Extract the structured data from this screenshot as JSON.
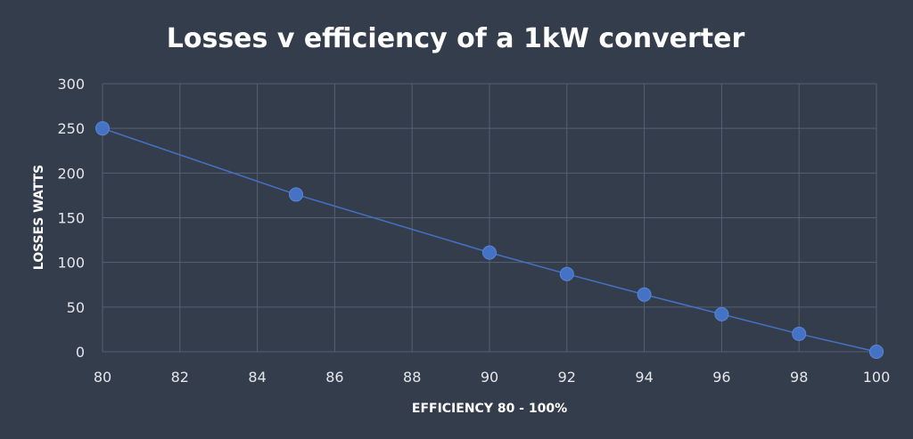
{
  "chart_data": {
    "type": "line",
    "title": "Losses v efficiency of a 1kW converter",
    "xlabel": "EFFICIENCY 80 - 100%",
    "ylabel": "LOSSES WATTS",
    "xlim": [
      80,
      100
    ],
    "ylim": [
      0,
      300
    ],
    "xticks": [
      80,
      82,
      84,
      86,
      88,
      90,
      92,
      94,
      96,
      98,
      100
    ],
    "yticks": [
      0,
      50,
      100,
      150,
      200,
      250,
      300
    ],
    "grid": true,
    "legend": "none",
    "series": [
      {
        "x": [
          80,
          85,
          90,
          92,
          94,
          96,
          98,
          100
        ],
        "y": [
          250,
          176,
          111,
          87,
          64,
          42,
          20,
          0
        ]
      }
    ],
    "colors": {
      "line": "#4472c4",
      "marker": "#4472c4",
      "background": "#343d4c",
      "grid": "#566070"
    }
  }
}
